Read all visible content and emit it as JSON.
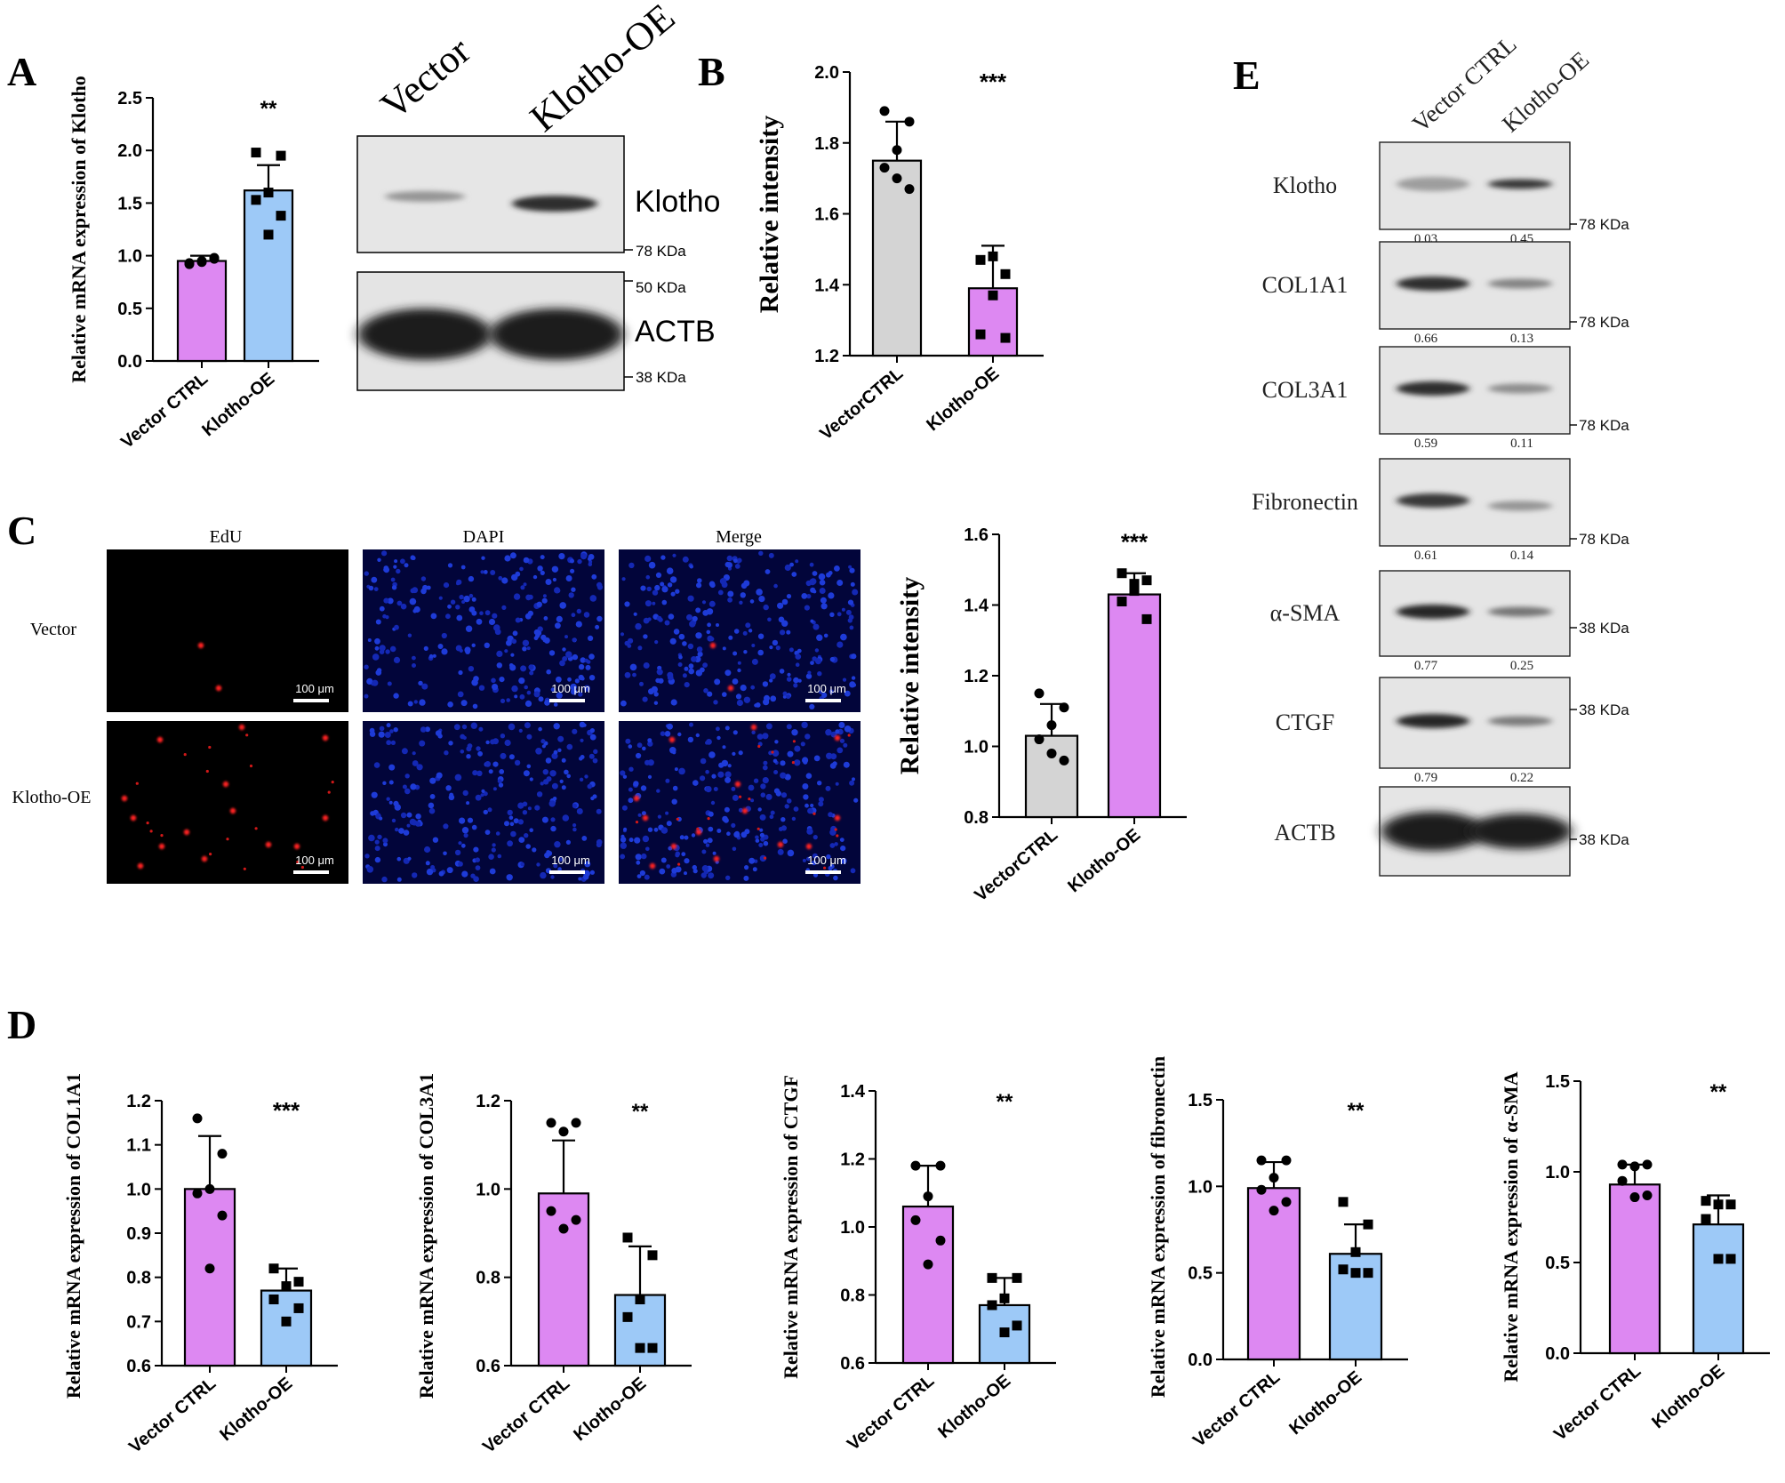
{
  "panel_labels": [
    "A",
    "B",
    "C",
    "D",
    "E"
  ],
  "colors": {
    "vector": "#dd88f2",
    "klotho": "#9dc9f7",
    "gray": "#d4d4d4",
    "edu_dot": "#ff2020",
    "dapi_bg": "#0a1aa0"
  },
  "chart_data": [
    {
      "id": "A",
      "type": "bar",
      "categories": [
        "Vector CTRL",
        "Klotho-OE"
      ],
      "values": [
        0.95,
        1.62
      ],
      "errors": [
        0.05,
        0.24
      ],
      "points": [
        [
          0.93,
          0.97,
          0.95,
          0.92,
          0.98,
          0.94
        ],
        [
          1.98,
          1.95,
          1.6,
          1.53,
          1.38,
          1.2
        ]
      ],
      "bar_colors": [
        "#dd88f2",
        "#9dc9f7"
      ],
      "marker": [
        "circle",
        "square"
      ],
      "ylabel": "Relative mRNA expression of Klotho",
      "ylim": [
        0,
        2.5
      ],
      "yticks": [
        0.0,
        0.5,
        1.0,
        1.5,
        2.0,
        2.5
      ],
      "tick_dec": 1,
      "significance": "**"
    },
    {
      "id": "B",
      "type": "bar",
      "categories": [
        "VectorCTRL",
        "Klotho-OE"
      ],
      "values": [
        1.75,
        1.39
      ],
      "errors": [
        0.11,
        0.12
      ],
      "points": [
        [
          1.89,
          1.86,
          1.78,
          1.73,
          1.67,
          1.7
        ],
        [
          1.47,
          1.43,
          1.37,
          1.26,
          1.25,
          1.48
        ]
      ],
      "bar_colors": [
        "#d4d4d4",
        "#dd88f2"
      ],
      "marker": [
        "circle",
        "square"
      ],
      "ylabel": "Relative intensity",
      "ylim": [
        1.2,
        2.0
      ],
      "yticks": [
        1.2,
        1.4,
        1.6,
        1.8,
        2.0
      ],
      "tick_dec": 1,
      "significance": "***"
    },
    {
      "id": "C",
      "type": "bar",
      "categories": [
        "VectorCTRL",
        "Klotho-OE"
      ],
      "values": [
        1.03,
        1.43
      ],
      "errors": [
        0.09,
        0.06
      ],
      "points": [
        [
          1.15,
          1.11,
          1.06,
          1.02,
          0.96,
          0.98
        ],
        [
          1.49,
          1.47,
          1.44,
          1.41,
          1.36,
          1.46
        ]
      ],
      "bar_colors": [
        "#d4d4d4",
        "#dd88f2"
      ],
      "marker": [
        "circle",
        "square"
      ],
      "ylabel": "Relative intensity",
      "ylim": [
        0.8,
        1.6
      ],
      "yticks": [
        0.8,
        1.0,
        1.2,
        1.4,
        1.6
      ],
      "tick_dec": 1,
      "significance": "***"
    },
    {
      "id": "D1",
      "type": "bar",
      "categories": [
        "Vector CTRL",
        "Klotho-OE"
      ],
      "values": [
        1.0,
        0.77
      ],
      "errors": [
        0.12,
        0.05
      ],
      "points": [
        [
          1.16,
          1.08,
          1.0,
          0.99,
          0.94,
          0.82
        ],
        [
          0.82,
          0.79,
          0.78,
          0.75,
          0.73,
          0.7
        ]
      ],
      "bar_colors": [
        "#dd88f2",
        "#9dc9f7"
      ],
      "marker": [
        "circle",
        "square"
      ],
      "ylabel": "Relative mRNA expression of COL1A1",
      "ylim": [
        0.6,
        1.2
      ],
      "yticks": [
        0.6,
        0.7,
        0.8,
        0.9,
        1.0,
        1.1,
        1.2
      ],
      "tick_dec": 1,
      "significance": "***"
    },
    {
      "id": "D2",
      "type": "bar",
      "categories": [
        "Vector CTRL",
        "Klotho-OE"
      ],
      "values": [
        0.99,
        0.76
      ],
      "errors": [
        0.12,
        0.11
      ],
      "points": [
        [
          1.15,
          1.15,
          1.13,
          0.95,
          0.93,
          0.91
        ],
        [
          0.89,
          0.85,
          0.75,
          0.71,
          0.64,
          0.64
        ]
      ],
      "bar_colors": [
        "#dd88f2",
        "#9dc9f7"
      ],
      "marker": [
        "circle",
        "square"
      ],
      "ylabel": "Relative mRNA expression of COL3A1",
      "ylim": [
        0.6,
        1.2
      ],
      "yticks": [
        0.6,
        0.8,
        1.0,
        1.2
      ],
      "tick_dec": 1,
      "significance": "**"
    },
    {
      "id": "D3",
      "type": "bar",
      "categories": [
        "Vector CTRL",
        "Klotho-OE"
      ],
      "values": [
        1.06,
        0.77
      ],
      "errors": [
        0.12,
        0.08
      ],
      "points": [
        [
          1.18,
          1.18,
          1.09,
          1.02,
          0.96,
          0.89
        ],
        [
          0.85,
          0.85,
          0.79,
          0.77,
          0.71,
          0.69
        ]
      ],
      "bar_colors": [
        "#dd88f2",
        "#9dc9f7"
      ],
      "marker": [
        "circle",
        "square"
      ],
      "ylabel": "Relative mRNA expression of CTGF",
      "ylim": [
        0.6,
        1.4
      ],
      "yticks": [
        0.6,
        0.8,
        1.0,
        1.2,
        1.4
      ],
      "tick_dec": 1,
      "significance": "**"
    },
    {
      "id": "D4",
      "type": "bar",
      "categories": [
        "Vector CTRL",
        "Klotho-OE"
      ],
      "values": [
        0.99,
        0.61
      ],
      "errors": [
        0.15,
        0.17
      ],
      "points": [
        [
          1.15,
          1.15,
          1.05,
          0.98,
          0.91,
          0.86
        ],
        [
          0.91,
          0.78,
          0.62,
          0.52,
          0.5,
          0.5
        ]
      ],
      "bar_colors": [
        "#dd88f2",
        "#9dc9f7"
      ],
      "marker": [
        "circle",
        "square"
      ],
      "ylabel": "Relative mRNA expression of fibronectin",
      "ylim": [
        0.0,
        1.5
      ],
      "yticks": [
        0.0,
        0.5,
        1.0,
        1.5
      ],
      "tick_dec": 1,
      "significance": "**"
    },
    {
      "id": "D5",
      "type": "bar",
      "categories": [
        "Vector CTRL",
        "Klotho-OE"
      ],
      "values": [
        0.93,
        0.71
      ],
      "errors": [
        0.11,
        0.16
      ],
      "points": [
        [
          1.04,
          1.04,
          1.03,
          0.95,
          0.87,
          0.86
        ],
        [
          0.84,
          0.82,
          0.82,
          0.74,
          0.52,
          0.52
        ]
      ],
      "bar_colors": [
        "#dd88f2",
        "#9dc9f7"
      ],
      "marker": [
        "circle",
        "square"
      ],
      "ylabel": "Relative mRNA expression of α-SMA",
      "ylim": [
        0.0,
        1.5
      ],
      "yticks": [
        0.0,
        0.5,
        1.0,
        1.5
      ],
      "tick_dec": 1,
      "significance": "**"
    }
  ],
  "blot_A": {
    "headers": [
      "Vector",
      "Klotho-OE"
    ],
    "proteins": [
      "Klotho",
      "ACTB"
    ],
    "markers": [
      "78 KDa",
      "50 KDa",
      "38 KDa"
    ],
    "band_intensity": [
      [
        0.3,
        0.9
      ],
      [
        1.0,
        1.0
      ]
    ]
  },
  "blot_E": {
    "headers": [
      "Vector CTRL",
      "Klotho-OE"
    ],
    "rows": [
      {
        "label": "Klotho",
        "values": [
          "0.03",
          "0.45"
        ],
        "kda": "78 KDa",
        "intensity": [
          0.25,
          0.85
        ]
      },
      {
        "label": "COL1A1",
        "values": [
          "0.66",
          "0.13"
        ],
        "kda": "78 KDa",
        "intensity": [
          0.9,
          0.4
        ]
      },
      {
        "label": "COL3A1",
        "values": [
          "0.59",
          "0.11"
        ],
        "kda": "78 KDa",
        "intensity": [
          0.9,
          0.35
        ]
      },
      {
        "label": "Fibronectin",
        "values": [
          "0.61",
          "0.14"
        ],
        "kda": "78 KDa",
        "intensity": [
          0.85,
          0.3
        ]
      },
      {
        "label": "α-SMA",
        "values": [
          "0.77",
          "0.25"
        ],
        "kda": "38 KDa",
        "intensity": [
          0.95,
          0.5
        ]
      },
      {
        "label": "CTGF",
        "values": [
          "0.79",
          "0.22"
        ],
        "kda": "38 KDa",
        "intensity": [
          0.95,
          0.45
        ]
      },
      {
        "label": "ACTB",
        "values": [],
        "kda": "38 KDa",
        "intensity": [
          1.0,
          1.0
        ]
      }
    ]
  },
  "micro_C": {
    "columns": [
      "EdU",
      "DAPI",
      "Merge"
    ],
    "rows": [
      "Vector",
      "Klotho-OE"
    ],
    "scalebar": "100 μm"
  }
}
